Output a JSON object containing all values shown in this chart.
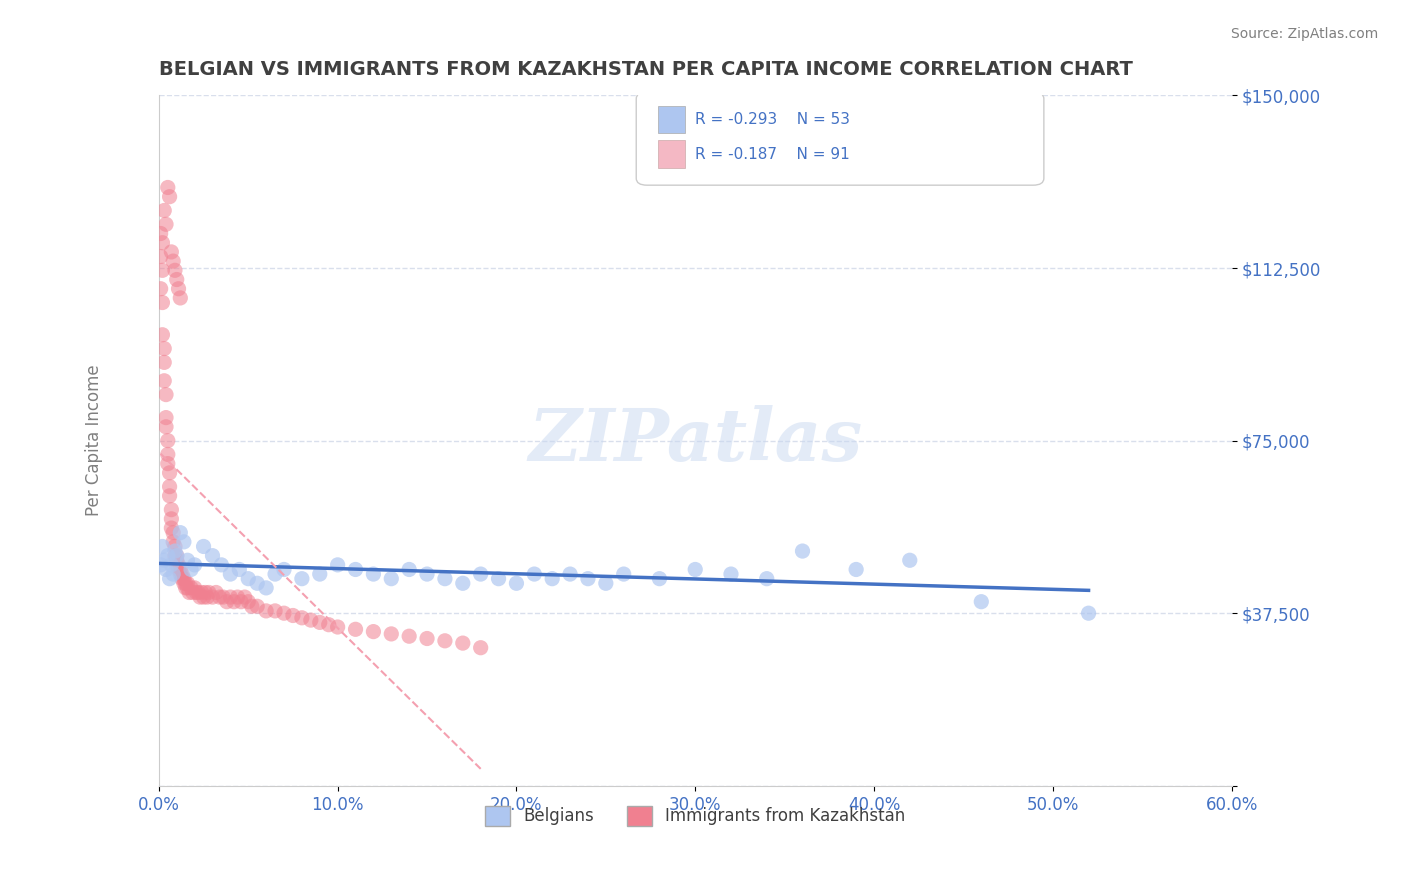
{
  "title": "BELGIAN VS IMMIGRANTS FROM KAZAKHSTAN PER CAPITA INCOME CORRELATION CHART",
  "source": "Source: ZipAtlas.com",
  "xlabel": "",
  "ylabel": "Per Capita Income",
  "xlim": [
    0.0,
    0.6
  ],
  "ylim": [
    0,
    150000
  ],
  "yticks": [
    0,
    37500,
    75000,
    112500,
    150000
  ],
  "ytick_labels": [
    "",
    "$37,500",
    "$75,000",
    "$112,500",
    "$150,000"
  ],
  "xticks": [
    0.0,
    0.1,
    0.2,
    0.3,
    0.4,
    0.5,
    0.6
  ],
  "xtick_labels": [
    "0.0%",
    "10.0%",
    "20.0%",
    "30.0%",
    "40.0%",
    "50.0%",
    "60.0%"
  ],
  "legend_items": [
    {
      "color": "#aec6f0",
      "label": "Belgians",
      "R": -0.293,
      "N": 53
    },
    {
      "color": "#f4a0b0",
      "label": "Immigrants from Kazakhstan",
      "R": -0.187,
      "N": 91
    }
  ],
  "belgians_x": [
    0.001,
    0.002,
    0.003,
    0.004,
    0.005,
    0.006,
    0.007,
    0.008,
    0.009,
    0.01,
    0.012,
    0.014,
    0.016,
    0.018,
    0.02,
    0.025,
    0.03,
    0.035,
    0.04,
    0.045,
    0.05,
    0.055,
    0.06,
    0.065,
    0.07,
    0.08,
    0.09,
    0.1,
    0.11,
    0.12,
    0.13,
    0.14,
    0.15,
    0.16,
    0.17,
    0.18,
    0.19,
    0.2,
    0.21,
    0.22,
    0.23,
    0.24,
    0.25,
    0.26,
    0.28,
    0.3,
    0.32,
    0.34,
    0.36,
    0.39,
    0.42,
    0.46,
    0.52
  ],
  "belgians_y": [
    48000,
    52000,
    49000,
    47000,
    50000,
    45000,
    48000,
    46000,
    51000,
    50000,
    55000,
    53000,
    49000,
    47000,
    48000,
    52000,
    50000,
    48000,
    46000,
    47000,
    45000,
    44000,
    43000,
    46000,
    47000,
    45000,
    46000,
    48000,
    47000,
    46000,
    45000,
    47000,
    46000,
    45000,
    44000,
    46000,
    45000,
    44000,
    46000,
    45000,
    46000,
    45000,
    44000,
    46000,
    45000,
    47000,
    46000,
    45000,
    51000,
    47000,
    49000,
    40000,
    37500
  ],
  "immigrants_x": [
    0.001,
    0.001,
    0.001,
    0.002,
    0.002,
    0.002,
    0.003,
    0.003,
    0.003,
    0.004,
    0.004,
    0.004,
    0.005,
    0.005,
    0.005,
    0.006,
    0.006,
    0.006,
    0.007,
    0.007,
    0.007,
    0.008,
    0.008,
    0.009,
    0.009,
    0.01,
    0.01,
    0.01,
    0.011,
    0.011,
    0.012,
    0.012,
    0.013,
    0.013,
    0.014,
    0.014,
    0.015,
    0.015,
    0.016,
    0.016,
    0.017,
    0.018,
    0.019,
    0.02,
    0.021,
    0.022,
    0.023,
    0.024,
    0.025,
    0.026,
    0.027,
    0.028,
    0.03,
    0.032,
    0.034,
    0.036,
    0.038,
    0.04,
    0.042,
    0.044,
    0.046,
    0.048,
    0.05,
    0.052,
    0.055,
    0.06,
    0.065,
    0.07,
    0.075,
    0.08,
    0.085,
    0.09,
    0.095,
    0.1,
    0.11,
    0.12,
    0.13,
    0.14,
    0.15,
    0.16,
    0.17,
    0.18,
    0.005,
    0.003,
    0.006,
    0.002,
    0.004,
    0.007,
    0.008,
    0.009,
    0.01,
    0.011,
    0.012
  ],
  "immigrants_y": [
    115000,
    108000,
    120000,
    105000,
    98000,
    112000,
    95000,
    88000,
    92000,
    85000,
    80000,
    78000,
    75000,
    72000,
    70000,
    68000,
    65000,
    63000,
    60000,
    58000,
    56000,
    55000,
    53000,
    52000,
    50000,
    50000,
    48000,
    49000,
    47000,
    48000,
    46000,
    47000,
    46000,
    45000,
    45000,
    44000,
    44000,
    43000,
    43000,
    44000,
    42000,
    43000,
    42000,
    43000,
    42000,
    42000,
    41000,
    42000,
    41000,
    42000,
    41000,
    42000,
    41000,
    42000,
    41000,
    41000,
    40000,
    41000,
    40000,
    41000,
    40000,
    41000,
    40000,
    39000,
    39000,
    38000,
    38000,
    37500,
    37000,
    36500,
    36000,
    35500,
    35000,
    34500,
    34000,
    33500,
    33000,
    32500,
    32000,
    31500,
    31000,
    30000,
    130000,
    125000,
    128000,
    118000,
    122000,
    116000,
    114000,
    112000,
    110000,
    108000,
    106000
  ],
  "blue_line_color": "#4472c4",
  "pink_line_color": "#f4a0b0",
  "scatter_blue_color": "#aec6f0",
  "scatter_pink_color": "#f08090",
  "background_color": "#ffffff",
  "grid_color": "#d0d8e8",
  "watermark_text": "ZIPatlas",
  "watermark_color": "#c8d8f0",
  "title_color": "#404040",
  "axis_label_color": "#808080",
  "tick_label_color": "#4472c4",
  "source_color": "#808080"
}
